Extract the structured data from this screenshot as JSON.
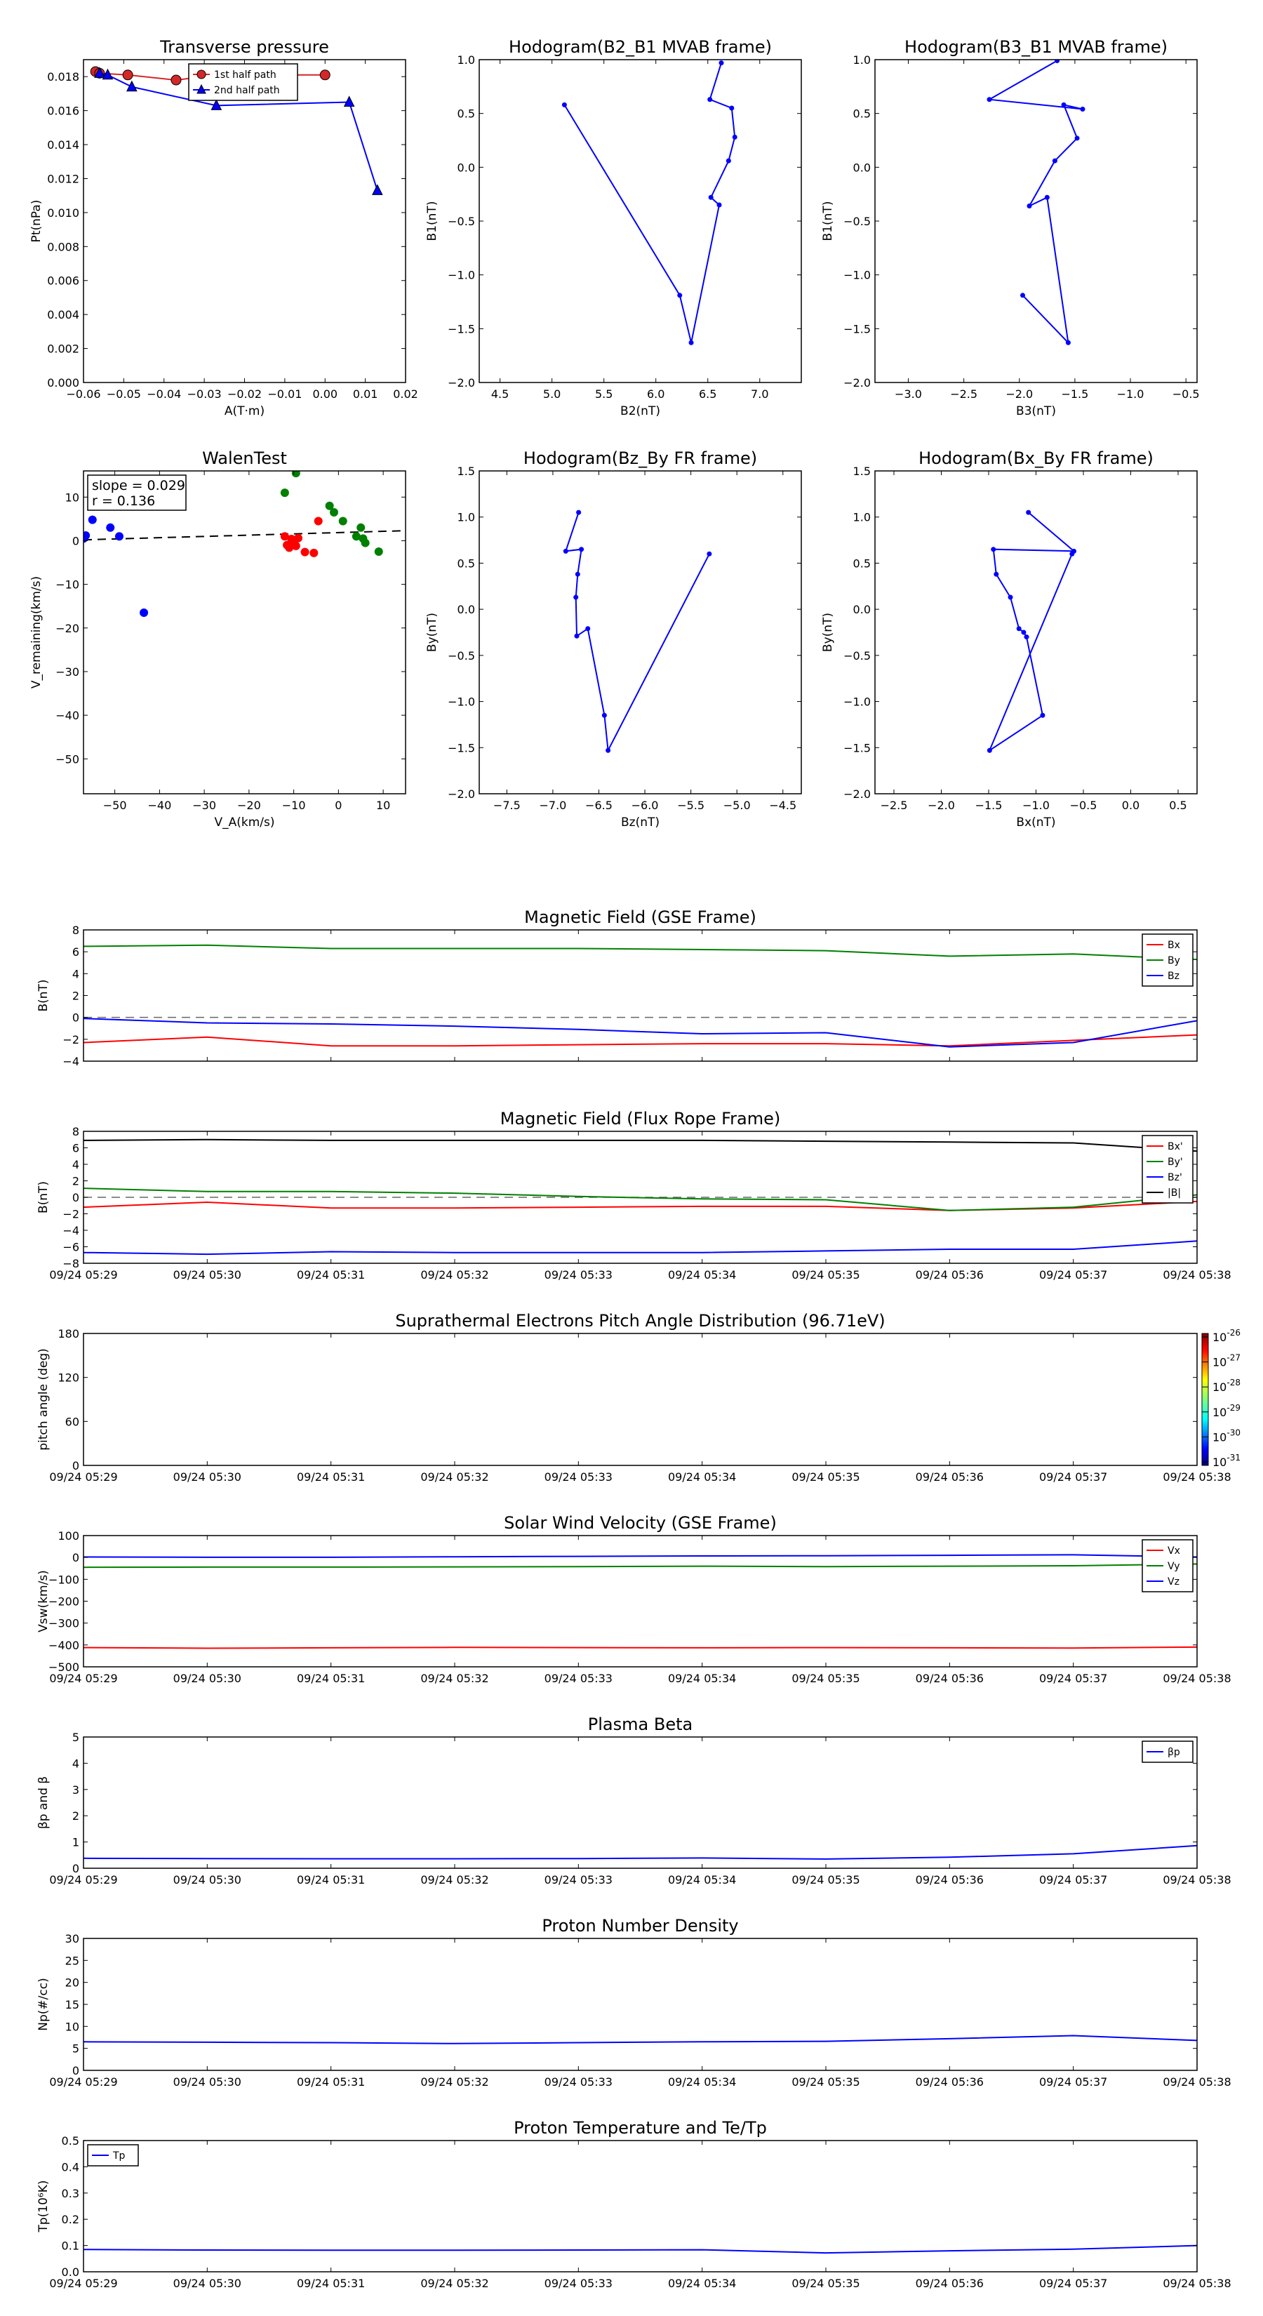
{
  "time_ticks": [
    "09/24 05:29",
    "09/24 05:30",
    "09/24 05:31",
    "09/24 05:32",
    "09/24 05:33",
    "09/24 05:34",
    "09/24 05:35",
    "09/24 05:36",
    "09/24 05:37",
    "09/24 05:38"
  ],
  "chart_data": [
    {
      "id": "transverse-pressure",
      "type": "line",
      "title": "Transverse pressure",
      "xlabel": "A(T·m)",
      "ylabel": "Pt(nPa)",
      "xlim": [
        -0.06,
        0.02
      ],
      "ylim": [
        0,
        0.019
      ],
      "xticks": [
        -0.06,
        -0.05,
        -0.04,
        -0.03,
        -0.02,
        -0.01,
        0.0,
        0.01,
        0.02
      ],
      "xtick_labels": [
        "−0.06",
        "−0.05",
        "−0.04",
        "−0.03",
        "−0.02",
        "−0.01",
        "0.00",
        "0.01",
        "0.02"
      ],
      "yticks": [
        0,
        0.002,
        0.004,
        0.006,
        0.008,
        0.01,
        0.012,
        0.014,
        0.016,
        0.018
      ],
      "ytick_labels": [
        "0.000",
        "0.002",
        "0.004",
        "0.006",
        "0.008",
        "0.010",
        "0.012",
        "0.014",
        "0.016",
        "0.018"
      ],
      "legend_position": "top-center",
      "series": [
        {
          "name": "1st half path",
          "color": "#d62728",
          "marker": "circle",
          "x": [
            -0.057,
            -0.056,
            -0.049,
            -0.037,
            -0.027,
            0.0
          ],
          "y": [
            0.0183,
            0.0182,
            0.0181,
            0.0178,
            0.0181,
            0.0181
          ]
        },
        {
          "name": "2nd half path",
          "color": "#0000ff",
          "marker": "triangle",
          "x": [
            -0.056,
            -0.054,
            -0.048,
            -0.027,
            0.006,
            0.013
          ],
          "y": [
            0.0182,
            0.0181,
            0.0174,
            0.0163,
            0.0165,
            0.0113
          ]
        }
      ]
    },
    {
      "id": "hodogram-b2-b1",
      "type": "line",
      "title": "Hodogram(B2_B1 MVAB frame)",
      "xlabel": "B2(nT)",
      "ylabel": "B1(nT)",
      "xlim": [
        4.3,
        7.4
      ],
      "ylim": [
        -2.0,
        1.0
      ],
      "xticks": [
        4.5,
        5.0,
        5.5,
        6.0,
        6.5,
        7.0
      ],
      "xtick_labels": [
        "4.5",
        "5.0",
        "5.5",
        "6.0",
        "6.5",
        "7.0"
      ],
      "yticks": [
        -2.0,
        -1.5,
        -1.0,
        -0.5,
        0.0,
        0.5,
        1.0
      ],
      "ytick_labels": [
        "−2.0",
        "−1.5",
        "−1.0",
        "−0.5",
        "0.0",
        "0.5",
        "1.0"
      ],
      "series": [
        {
          "color": "#0000ff",
          "x": [
            6.63,
            6.52,
            6.73,
            6.76,
            6.7,
            6.53,
            6.61,
            6.34,
            6.23,
            5.12
          ],
          "y": [
            0.97,
            0.63,
            0.55,
            0.28,
            0.06,
            -0.28,
            -0.35,
            -1.63,
            -1.19,
            0.58
          ]
        }
      ]
    },
    {
      "id": "hodogram-b3-b1",
      "type": "line",
      "title": "Hodogram(B3_B1 MVAB frame)",
      "xlabel": "B3(nT)",
      "ylabel": "B1(nT)",
      "xlim": [
        -3.3,
        -0.4
      ],
      "ylim": [
        -2.0,
        1.0
      ],
      "xticks": [
        -3.0,
        -2.5,
        -2.0,
        -1.5,
        -1.0,
        -0.5
      ],
      "xtick_labels": [
        "−3.0",
        "−2.5",
        "−2.0",
        "−1.5",
        "−1.0",
        "−0.5"
      ],
      "yticks": [
        -2.0,
        -1.5,
        -1.0,
        -0.5,
        0.0,
        0.5,
        1.0
      ],
      "ytick_labels": [
        "−2.0",
        "−1.5",
        "−1.0",
        "−0.5",
        "0.0",
        "0.5",
        "1.0"
      ],
      "series": [
        {
          "color": "#0000ff",
          "x": [
            -1.66,
            -2.27,
            -1.43,
            -1.6,
            -1.48,
            -1.68,
            -1.91,
            -1.75,
            -1.56,
            -1.97
          ],
          "y": [
            0.99,
            0.63,
            0.54,
            0.58,
            0.27,
            0.06,
            -0.36,
            -0.28,
            -1.63,
            -1.19
          ]
        }
      ]
    },
    {
      "id": "walen-test",
      "type": "scatter",
      "title": "WalenTest",
      "xlabel": "V_A(km/s)",
      "ylabel": "V_remaining(km/s)",
      "xlim": [
        -57,
        15
      ],
      "ylim": [
        -58,
        16
      ],
      "xticks": [
        -50,
        -40,
        -30,
        -20,
        -10,
        0,
        10
      ],
      "xtick_labels": [
        "−50",
        "−40",
        "−30",
        "−20",
        "−10",
        "0",
        "10"
      ],
      "yticks": [
        -50,
        -40,
        -30,
        -20,
        -10,
        0,
        10
      ],
      "ytick_labels": [
        "−50",
        "−40",
        "−30",
        "−20",
        "−10",
        "0",
        "10"
      ],
      "annotation": [
        "slope = 0.029",
        "r = 0.136"
      ],
      "fit_line": {
        "x": [
          -57,
          15
        ],
        "y": [
          0.2,
          2.3
        ]
      },
      "series": [
        {
          "color": "#0000ff",
          "x": [
            -57,
            -56.5,
            -55,
            -51,
            -49,
            -43.5
          ],
          "y": [
            0.5,
            1.2,
            4.8,
            3,
            1,
            -16.5
          ]
        },
        {
          "color": "#ff0000",
          "x": [
            -12,
            -11.5,
            -11,
            -10.5,
            -10,
            -9.5,
            -9,
            -7.5,
            -5.5,
            -4.5
          ],
          "y": [
            1,
            -1,
            -1.6,
            0.4,
            -0.8,
            -1.2,
            0.6,
            -2.6,
            -2.8,
            4.5
          ]
        },
        {
          "color": "#008000",
          "x": [
            -12,
            -9.5,
            -2,
            -1,
            1,
            4,
            5,
            5.5,
            6,
            9
          ],
          "y": [
            11,
            15.5,
            8,
            6.5,
            4.5,
            1,
            3,
            0.5,
            -0.5,
            -2.5
          ]
        }
      ]
    },
    {
      "id": "hodogram-bz-by",
      "type": "line",
      "title": "Hodogram(Bz_By FR frame)",
      "xlabel": "Bz(nT)",
      "ylabel": "By(nT)",
      "xlim": [
        -7.8,
        -4.3
      ],
      "ylim": [
        -2.0,
        1.5
      ],
      "xticks": [
        -7.5,
        -7.0,
        -6.5,
        -6.0,
        -5.5,
        -5.0,
        -4.5
      ],
      "xtick_labels": [
        "−7.5",
        "−7.0",
        "−6.5",
        "−6.0",
        "−5.5",
        "−5.0",
        "−4.5"
      ],
      "yticks": [
        -2.0,
        -1.5,
        -1.0,
        -0.5,
        0.0,
        0.5,
        1.0,
        1.5
      ],
      "ytick_labels": [
        "−2.0",
        "−1.5",
        "−1.0",
        "−0.5",
        "0.0",
        "0.5",
        "1.0",
        "1.5"
      ],
      "series": [
        {
          "color": "#0000ff",
          "x": [
            -6.72,
            -6.86,
            -6.69,
            -6.73,
            -6.75,
            -6.74,
            -6.62,
            -6.44,
            -6.4,
            -5.3
          ],
          "y": [
            1.05,
            0.63,
            0.65,
            0.38,
            0.13,
            -0.29,
            -0.21,
            -1.15,
            -1.53,
            0.6
          ]
        }
      ]
    },
    {
      "id": "hodogram-bx-by",
      "type": "line",
      "title": "Hodogram(Bx_By FR frame)",
      "xlabel": "Bx(nT)",
      "ylabel": "By(nT)",
      "xlim": [
        -2.7,
        0.7
      ],
      "ylim": [
        -2.0,
        1.5
      ],
      "xticks": [
        -2.5,
        -2.0,
        -1.5,
        -1.0,
        -0.5,
        0.0,
        0.5
      ],
      "xtick_labels": [
        "−2.5",
        "−2.0",
        "−1.5",
        "−1.0",
        "−0.5",
        "0.0",
        "0.5"
      ],
      "yticks": [
        -2.0,
        -1.5,
        -1.0,
        -0.5,
        0.0,
        0.5,
        1.0,
        1.5
      ],
      "ytick_labels": [
        "−2.0",
        "−1.5",
        "−1.0",
        "−0.5",
        "0.0",
        "0.5",
        "1.0",
        "1.5"
      ],
      "series": [
        {
          "color": "#0000ff",
          "x": [
            -1.08,
            -0.6,
            -1.45,
            -1.42,
            -1.27,
            -1.18,
            -1.13,
            -1.1,
            -0.93,
            -1.49,
            -0.62
          ],
          "y": [
            1.05,
            0.63,
            0.65,
            0.38,
            0.13,
            -0.21,
            -0.25,
            -0.3,
            -1.15,
            -1.53,
            0.6
          ]
        }
      ]
    },
    {
      "id": "magnetic-field-gse",
      "type": "line",
      "title": "Magnetic Field (GSE Frame)",
      "xlabel": "",
      "ylabel": "B(nT)",
      "xlim": [
        0,
        9
      ],
      "ylim": [
        -4,
        8
      ],
      "yticks": [
        -4,
        -2,
        0,
        2,
        4,
        6,
        8
      ],
      "ytick_labels": [
        "−4",
        "−2",
        "0",
        "2",
        "4",
        "6",
        "8"
      ],
      "show_time_labels": false,
      "zero_line": true,
      "legend_position": "top-right",
      "x": [
        0,
        1,
        2,
        3,
        4,
        5,
        6,
        7,
        8,
        9
      ],
      "series": [
        {
          "name": "Bx",
          "color": "#ff0000",
          "values": [
            -2.3,
            -1.8,
            -2.6,
            -2.6,
            -2.5,
            -2.4,
            -2.4,
            -2.6,
            -2.1,
            -1.6
          ]
        },
        {
          "name": "By",
          "color": "#008000",
          "values": [
            6.5,
            6.6,
            6.3,
            6.3,
            6.3,
            6.2,
            6.1,
            5.6,
            5.8,
            5.3
          ]
        },
        {
          "name": "Bz",
          "color": "#0000ff",
          "values": [
            -0.1,
            -0.5,
            -0.6,
            -0.8,
            -1.1,
            -1.5,
            -1.4,
            -2.7,
            -2.3,
            -0.3
          ]
        }
      ]
    },
    {
      "id": "magnetic-field-flux-rope",
      "type": "line",
      "title": "Magnetic Field (Flux Rope Frame)",
      "xlabel": "",
      "ylabel": "B(nT)",
      "xlim": [
        0,
        9
      ],
      "ylim": [
        -8,
        8
      ],
      "yticks": [
        -8,
        -6,
        -4,
        -2,
        0,
        2,
        4,
        6,
        8
      ],
      "ytick_labels": [
        "−8",
        "−6",
        "−4",
        "−2",
        "0",
        "2",
        "4",
        "6",
        "8"
      ],
      "show_time_labels": true,
      "zero_line": true,
      "legend_position": "top-right",
      "x": [
        0,
        1,
        2,
        3,
        4,
        5,
        6,
        7,
        8,
        9
      ],
      "series": [
        {
          "name": "Bx'",
          "color": "#ff0000",
          "values": [
            -1.2,
            -0.6,
            -1.3,
            -1.3,
            -1.2,
            -1.1,
            -1.1,
            -1.6,
            -1.3,
            -0.5
          ]
        },
        {
          "name": "By'",
          "color": "#008000",
          "values": [
            1.1,
            0.7,
            0.7,
            0.5,
            0.1,
            -0.2,
            -0.3,
            -1.6,
            -1.2,
            0.3
          ]
        },
        {
          "name": "Bz'",
          "color": "#0000ff",
          "values": [
            -6.7,
            -6.9,
            -6.6,
            -6.7,
            -6.7,
            -6.7,
            -6.5,
            -6.3,
            -6.3,
            -5.3
          ]
        },
        {
          "name": "|B|",
          "color": "#000000",
          "values": [
            6.9,
            7.0,
            6.9,
            6.9,
            6.9,
            6.9,
            6.8,
            6.7,
            6.6,
            5.6
          ]
        }
      ]
    },
    {
      "id": "pitch-angle-distribution",
      "type": "heatmap",
      "title": "Suprathermal Electrons Pitch Angle Distribution (96.71eV)",
      "xlabel": "",
      "ylabel": "pitch angle (deg)",
      "xlim": [
        0,
        9
      ],
      "ylim": [
        0,
        180
      ],
      "yticks": [
        0,
        60,
        120,
        180
      ],
      "ytick_labels": [
        "0",
        "60",
        "120",
        "180"
      ],
      "show_time_labels": true,
      "colorbar": {
        "exponents": [
          "-26",
          "-27",
          "-28",
          "-29",
          "-30",
          "-31"
        ],
        "base": "10"
      },
      "series": []
    },
    {
      "id": "solar-wind-velocity",
      "type": "line",
      "title": "Solar Wind Velocity (GSE Frame)",
      "xlabel": "",
      "ylabel": "Vsw(km/s)",
      "xlim": [
        0,
        9
      ],
      "ylim": [
        -500,
        100
      ],
      "yticks": [
        -500,
        -400,
        -300,
        -200,
        -100,
        0,
        100
      ],
      "ytick_labels": [
        "−500",
        "−400",
        "−300",
        "−200",
        "−100",
        "0",
        "100"
      ],
      "show_time_labels": true,
      "legend_position": "top-right",
      "x": [
        0,
        1,
        2,
        3,
        4,
        5,
        6,
        7,
        8,
        9
      ],
      "series": [
        {
          "name": "Vx",
          "color": "#ff0000",
          "values": [
            -412,
            -415,
            -413,
            -411,
            -412,
            -413,
            -412,
            -413,
            -414,
            -410
          ]
        },
        {
          "name": "Vy",
          "color": "#008000",
          "values": [
            -45,
            -44,
            -44,
            -43,
            -42,
            -40,
            -42,
            -40,
            -38,
            -30
          ]
        },
        {
          "name": "Vz",
          "color": "#0000ff",
          "values": [
            2,
            1,
            1,
            3,
            5,
            7,
            8,
            10,
            12,
            2
          ]
        }
      ]
    },
    {
      "id": "plasma-beta",
      "type": "line",
      "title": "Plasma Beta",
      "xlabel": "",
      "ylabel": "βp and β",
      "xlim": [
        0,
        9
      ],
      "ylim": [
        0,
        5
      ],
      "yticks": [
        0,
        1,
        2,
        3,
        4,
        5
      ],
      "ytick_labels": [
        "0",
        "1",
        "2",
        "3",
        "4",
        "5"
      ],
      "show_time_labels": true,
      "legend_position": "top-right",
      "x": [
        0,
        1,
        2,
        3,
        4,
        5,
        6,
        7,
        8,
        9
      ],
      "series": [
        {
          "name": "βp",
          "color": "#0000ff",
          "values": [
            0.38,
            0.37,
            0.36,
            0.36,
            0.37,
            0.39,
            0.35,
            0.42,
            0.55,
            0.86
          ]
        }
      ]
    },
    {
      "id": "proton-number-density",
      "type": "line",
      "title": "Proton Number Density",
      "xlabel": "",
      "ylabel": "Np(#/cc)",
      "xlim": [
        0,
        9
      ],
      "ylim": [
        0,
        30
      ],
      "yticks": [
        0,
        5,
        10,
        15,
        20,
        25,
        30
      ],
      "ytick_labels": [
        "0",
        "5",
        "10",
        "15",
        "20",
        "25",
        "30"
      ],
      "show_time_labels": true,
      "x": [
        0,
        1,
        2,
        3,
        4,
        5,
        6,
        7,
        8,
        9
      ],
      "series": [
        {
          "color": "#0000ff",
          "values": [
            6.5,
            6.4,
            6.3,
            6.1,
            6.3,
            6.5,
            6.6,
            7.2,
            7.9,
            6.8
          ]
        }
      ]
    },
    {
      "id": "proton-temperature",
      "type": "line",
      "title": "Proton Temperature and Te/Tp",
      "xlabel": "",
      "ylabel": "Tp(10⁶K)",
      "xlim": [
        0,
        9
      ],
      "ylim": [
        0,
        0.5
      ],
      "yticks": [
        0,
        0.1,
        0.2,
        0.3,
        0.4,
        0.5
      ],
      "ytick_labels": [
        "0.0",
        "0.1",
        "0.2",
        "0.3",
        "0.4",
        "0.5"
      ],
      "show_time_labels": true,
      "legend_position": "top-left",
      "x": [
        0,
        1,
        2,
        3,
        4,
        5,
        6,
        7,
        8,
        9
      ],
      "series": [
        {
          "name": "Tp",
          "color": "#0000ff",
          "values": [
            0.085,
            0.083,
            0.082,
            0.082,
            0.083,
            0.084,
            0.072,
            0.08,
            0.086,
            0.1
          ]
        }
      ]
    }
  ]
}
